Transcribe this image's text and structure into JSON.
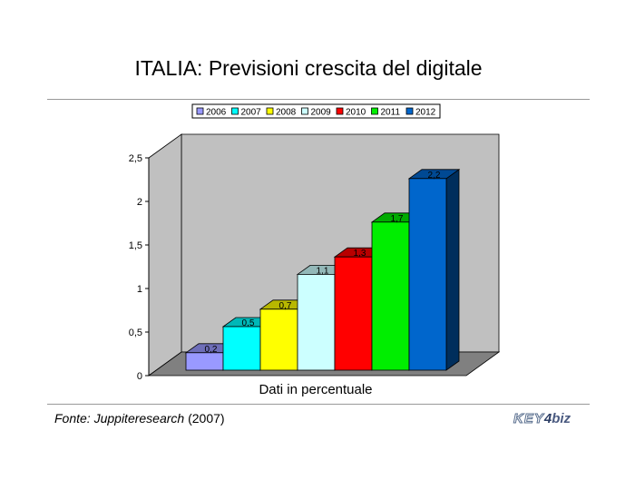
{
  "page": {
    "title": "ITALIA: Previsioni crescita del digitale",
    "source_italic": "Fonte: Juppiteresearch",
    "source_year": " (2007)",
    "logo_key": "KEY",
    "logo_four": "4",
    "logo_biz": "biz"
  },
  "chart_data": {
    "type": "bar",
    "title": "",
    "xlabel": "Dati in percentuale",
    "ylabel": "",
    "categories": [
      "2006",
      "2007",
      "2008",
      "2009",
      "2010",
      "2011",
      "2012"
    ],
    "values": [
      0.2,
      0.5,
      0.7,
      1.1,
      1.3,
      1.7,
      2.2
    ],
    "value_labels": [
      "0,2",
      "0,5",
      "0,7",
      "1,1",
      "1,3",
      "1,7",
      "2,2"
    ],
    "series": [
      {
        "name": "2006",
        "value": 0.2,
        "color": "#9999ff"
      },
      {
        "name": "2007",
        "value": 0.5,
        "color": "#00ffff"
      },
      {
        "name": "2008",
        "value": 0.7,
        "color": "#ffff00"
      },
      {
        "name": "2009",
        "value": 1.1,
        "color": "#ccffff"
      },
      {
        "name": "2010",
        "value": 1.3,
        "color": "#ff0000"
      },
      {
        "name": "2011",
        "value": 1.7,
        "color": "#00ee00"
      },
      {
        "name": "2012",
        "value": 2.2,
        "color": "#0066cc"
      }
    ],
    "ylim": [
      0,
      2.5
    ],
    "yticks": [
      0,
      0.5,
      1,
      1.5,
      2,
      2.5
    ],
    "ytick_labels": [
      "0",
      "0,5",
      "1",
      "1,5",
      "2",
      "2,5"
    ],
    "grid": false,
    "legend_position": "top",
    "style": "3d",
    "wall_color": "#c0c0c0",
    "floor_color": "#808080"
  }
}
